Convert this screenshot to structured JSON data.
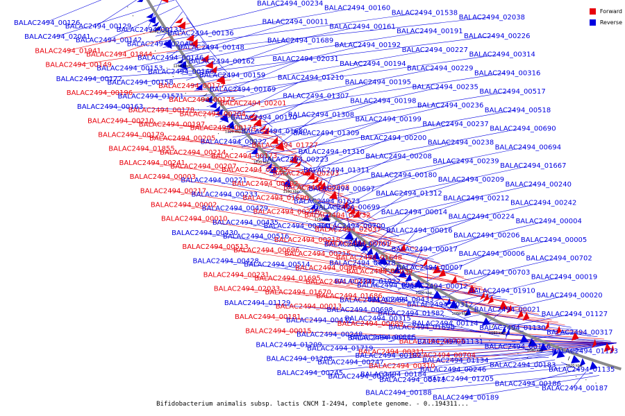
{
  "caption": "Bifidobacterium animalis subsp. lactis CNCM I-2494, complete genome. - 0..194311...",
  "legend": [
    {
      "label": "Forward",
      "color": "#e8000b"
    },
    {
      "label": "Reverse",
      "color": "#0000e0"
    }
  ],
  "colors": {
    "forward": "#e8000b",
    "reverse": "#0000e0",
    "backbone": "#8a8a8a"
  },
  "ticks": [
    "1280 kbp",
    "1260 kbp",
    "1240 kbp",
    "1220 kbp",
    "1200 kbp",
    "1180 kbp",
    "1160 kbp",
    "1140 kbp",
    "1120 kbp",
    "1100 kbp",
    "1080 kbp",
    "1060 kbp",
    "1040 kbp",
    "1020 kbp"
  ],
  "labels": [
    {
      "t": "BALAC2494_00126",
      "s": "r"
    },
    {
      "t": "BALAC2494_00129",
      "s": "r"
    },
    {
      "t": "BALAC2494_00131",
      "s": "r"
    },
    {
      "t": "BALAC2494_00136",
      "s": "r"
    },
    {
      "t": "BALAC2494_02041",
      "s": "r"
    },
    {
      "t": "BALAC2494_00142",
      "s": "r"
    },
    {
      "t": "BALAC2494_02040",
      "s": "r"
    },
    {
      "t": "BALAC2494_00148",
      "s": "r"
    },
    {
      "t": "BALAC2494_01941",
      "s": "f"
    },
    {
      "t": "BALAC2494_01844",
      "s": "f"
    },
    {
      "t": "BALAC2494_00146",
      "s": "r"
    },
    {
      "t": "BALAC2494_00162",
      "s": "r"
    },
    {
      "t": "BALAC2494_00149",
      "s": "f"
    },
    {
      "t": "BALAC2494_00153",
      "s": "r"
    },
    {
      "t": "BALAC2494_00166",
      "s": "r"
    },
    {
      "t": "BALAC2494_00159",
      "s": "r"
    },
    {
      "t": "BALAC2494_00172",
      "s": "r"
    },
    {
      "t": "BALAC2494_00158",
      "s": "r"
    },
    {
      "t": "BALAC2494_00177",
      "s": "f"
    },
    {
      "t": "BALAC2494_00169",
      "s": "r"
    },
    {
      "t": "BALAC2494_00196",
      "s": "f"
    },
    {
      "t": "BALAC2494_01571",
      "s": "r"
    },
    {
      "t": "BALAC2494_00175",
      "s": "f"
    },
    {
      "t": "BALAC2494_00201",
      "s": "f"
    },
    {
      "t": "BALAC2494_00163",
      "s": "r"
    },
    {
      "t": "BALAC2494_00178",
      "s": "f"
    },
    {
      "t": "BALAC2494_00204",
      "s": "f"
    },
    {
      "t": "BALAC2494_00170",
      "s": "r"
    },
    {
      "t": "BALAC2494_00210",
      "s": "f"
    },
    {
      "t": "BALAC2494_00197",
      "s": "f"
    },
    {
      "t": "BALAC2494_00174",
      "s": "f"
    },
    {
      "t": "BALAC2494_01680",
      "s": "r"
    },
    {
      "t": "BALAC2494_00179",
      "s": "f"
    },
    {
      "t": "BALAC2494_00205",
      "s": "f"
    },
    {
      "t": "BALAC2494_00222",
      "s": "r"
    },
    {
      "t": "BALAC2494_01727",
      "s": "f"
    },
    {
      "t": "BALAC2494_01855",
      "s": "f"
    },
    {
      "t": "BALAC2494_00214",
      "s": "f"
    },
    {
      "t": "BALAC2494_00173",
      "s": "f"
    },
    {
      "t": "BALAC2494_00223",
      "s": "r"
    },
    {
      "t": "BALAC2494_00241",
      "s": "f"
    },
    {
      "t": "BALAC2494_00207",
      "s": "f"
    },
    {
      "t": "BALAC2494_00225",
      "s": "f"
    },
    {
      "t": "BALAC2494_00203",
      "s": "f"
    },
    {
      "t": "BALAC2494_00003",
      "s": "f"
    },
    {
      "t": "BALAC2494_00221",
      "s": "r"
    },
    {
      "t": "BALAC2494_00202",
      "s": "f"
    },
    {
      "t": "BALAC2494_00008",
      "s": "f"
    },
    {
      "t": "BALAC2494_00217",
      "s": "f"
    },
    {
      "t": "BALAC2494_00233",
      "s": "r"
    },
    {
      "t": "BALAC2494_01690",
      "s": "f"
    },
    {
      "t": "BALAC2494_01673",
      "s": "r"
    },
    {
      "t": "BALAC2494_00002",
      "s": "f"
    },
    {
      "t": "BALAC2494_00429",
      "s": "r"
    },
    {
      "t": "BALAC2494_00216",
      "s": "f"
    },
    {
      "t": "BALAC2494_00232",
      "s": "f"
    },
    {
      "t": "BALAC2494_00010",
      "s": "f"
    },
    {
      "t": "BALAC2494_00435",
      "s": "r"
    },
    {
      "t": "BALAC2494_00220",
      "s": "r"
    },
    {
      "t": "BALAC2494_02037",
      "s": "f"
    },
    {
      "t": "BALAC2494_00430",
      "s": "r"
    },
    {
      "t": "BALAC2494_00516",
      "s": "r"
    },
    {
      "t": "BALAC2494_00218",
      "s": "f"
    },
    {
      "t": "BALAC2494_00009",
      "s": "f"
    },
    {
      "t": "BALAC2494_00513",
      "s": "f"
    },
    {
      "t": "BALAC2494_00696",
      "s": "f"
    },
    {
      "t": "BALAC2494_00215",
      "s": "f"
    },
    {
      "t": "BALAC2494_01648",
      "s": "f"
    },
    {
      "t": "BALAC2494_00428",
      "s": "r"
    },
    {
      "t": "BALAC2494_00514",
      "s": "r"
    },
    {
      "t": "BALAC2494_00964",
      "s": "f"
    },
    {
      "t": "BALAC2494_02039",
      "s": "f"
    },
    {
      "t": "BALAC2494_00231",
      "s": "f"
    },
    {
      "t": "BALAC2494_01695",
      "s": "f"
    },
    {
      "t": "BALAC2494_00434",
      "s": "f"
    },
    {
      "t": "BALAC2494_00691",
      "s": "r"
    },
    {
      "t": "BALAC2494_02033",
      "s": "f"
    },
    {
      "t": "BALAC2494_01670",
      "s": "f"
    },
    {
      "t": "BALAC2494_01686",
      "s": "f"
    },
    {
      "t": "BALAC2494_00433",
      "s": "r"
    },
    {
      "t": "BALAC2494_01129",
      "s": "r"
    },
    {
      "t": "BALAC2494_00013",
      "s": "f"
    },
    {
      "t": "BALAC2494_00698",
      "s": "r"
    },
    {
      "t": "BALAC2494_01582",
      "s": "r"
    },
    {
      "t": "BALAC2494_00181",
      "s": "f"
    },
    {
      "t": "BALAC2494_00432",
      "s": "r"
    },
    {
      "t": "BALAC2494_00689",
      "s": "f"
    },
    {
      "t": "BALAC2494_01698",
      "s": "r"
    },
    {
      "t": "BALAC2494_00015",
      "s": "f"
    },
    {
      "t": "BALAC2494_00248",
      "s": "r"
    },
    {
      "t": "BALAC2494_00431",
      "s": "r"
    },
    {
      "t": "BALAC2494_00705",
      "s": "f"
    },
    {
      "t": "BALAC2494_01209",
      "s": "r"
    },
    {
      "t": "BALAC2494_01719",
      "s": "r"
    },
    {
      "t": "BALAC2494_00311",
      "s": "f"
    },
    {
      "t": "BALAC2494_00704",
      "s": "f"
    },
    {
      "t": "BALAC2494_01208",
      "s": "r"
    },
    {
      "t": "BALAC2494_00247",
      "s": "r"
    },
    {
      "t": "BALAC2494_00310",
      "s": "f"
    },
    {
      "t": "BALAC2494_00246",
      "s": "r"
    },
    {
      "t": "BALAC2494_00245",
      "s": "r"
    },
    {
      "t": "BALAC2494_00154",
      "s": "r"
    },
    {
      "t": "BALAC2494_00171",
      "s": "r"
    },
    {
      "t": "BALAC2494_00234",
      "s": "r"
    },
    {
      "t": "BALAC2494_00160",
      "s": "r"
    },
    {
      "t": "BALAC2494_01538",
      "s": "r"
    },
    {
      "t": "BALAC2494_02038",
      "s": "r"
    },
    {
      "t": "BALAC2494_00011",
      "s": "r"
    },
    {
      "t": "BALAC2494_00161",
      "s": "r"
    },
    {
      "t": "BALAC2494_00191",
      "s": "r"
    },
    {
      "t": "BALAC2494_00226",
      "s": "r"
    },
    {
      "t": "BALAC2494_01689",
      "s": "r"
    },
    {
      "t": "BALAC2494_00192",
      "s": "r"
    },
    {
      "t": "BALAC2494_00227",
      "s": "r"
    },
    {
      "t": "BALAC2494_00314",
      "s": "r"
    },
    {
      "t": "BALAC2494_02031",
      "s": "r"
    },
    {
      "t": "BALAC2494_00194",
      "s": "r"
    },
    {
      "t": "BALAC2494_00229",
      "s": "r"
    },
    {
      "t": "BALAC2494_00316",
      "s": "r"
    },
    {
      "t": "BALAC2494_01210",
      "s": "r"
    },
    {
      "t": "BALAC2494_00195",
      "s": "r"
    },
    {
      "t": "BALAC2494_00235",
      "s": "r"
    },
    {
      "t": "BALAC2494_00517",
      "s": "r"
    },
    {
      "t": "BALAC2494_01307",
      "s": "r"
    },
    {
      "t": "BALAC2494_00198",
      "s": "r"
    },
    {
      "t": "BALAC2494_00236",
      "s": "r"
    },
    {
      "t": "BALAC2494_00518",
      "s": "r"
    },
    {
      "t": "BALAC2494_01308",
      "s": "r"
    },
    {
      "t": "BALAC2494_00199",
      "s": "r"
    },
    {
      "t": "BALAC2494_00237",
      "s": "r"
    },
    {
      "t": "BALAC2494_00690",
      "s": "r"
    },
    {
      "t": "BALAC2494_01309",
      "s": "r"
    },
    {
      "t": "BALAC2494_00200",
      "s": "r"
    },
    {
      "t": "BALAC2494_00238",
      "s": "r"
    },
    {
      "t": "BALAC2494_00694",
      "s": "r"
    },
    {
      "t": "BALAC2494_01310",
      "s": "r"
    },
    {
      "t": "BALAC2494_00208",
      "s": "r"
    },
    {
      "t": "BALAC2494_00239",
      "s": "r"
    },
    {
      "t": "BALAC2494_01667",
      "s": "r"
    },
    {
      "t": "BALAC2494_01311",
      "s": "r"
    },
    {
      "t": "BALAC2494_00180",
      "s": "r"
    },
    {
      "t": "BALAC2494_00209",
      "s": "r"
    },
    {
      "t": "BALAC2494_00240",
      "s": "r"
    },
    {
      "t": "BALAC2494_00697",
      "s": "r"
    },
    {
      "t": "BALAC2494_01312",
      "s": "r"
    },
    {
      "t": "BALAC2494_00212",
      "s": "r"
    },
    {
      "t": "BALAC2494_00242",
      "s": "r"
    },
    {
      "t": "BALAC2494_00699",
      "s": "r"
    },
    {
      "t": "BALAC2494_00014",
      "s": "r"
    },
    {
      "t": "BALAC2494_00224",
      "s": "r"
    },
    {
      "t": "BALAC2494_00004",
      "s": "r"
    },
    {
      "t": "BALAC2494_00700",
      "s": "r"
    },
    {
      "t": "BALAC2494_00016",
      "s": "r"
    },
    {
      "t": "BALAC2494_00206",
      "s": "r"
    },
    {
      "t": "BALAC2494_00005",
      "s": "r"
    },
    {
      "t": "BALAC2494_00701",
      "s": "r"
    },
    {
      "t": "BALAC2494_00017",
      "s": "r"
    },
    {
      "t": "BALAC2494_00006",
      "s": "r"
    },
    {
      "t": "BALAC2494_00702",
      "s": "r"
    },
    {
      "t": "BALAC2494_00018",
      "s": "r"
    },
    {
      "t": "BALAC2494_00007",
      "s": "r"
    },
    {
      "t": "BALAC2494_00703",
      "s": "r"
    },
    {
      "t": "BALAC2494_00019",
      "s": "r"
    },
    {
      "t": "BALAC2494_01922",
      "s": "r"
    },
    {
      "t": "BALAC2494_00012",
      "s": "r"
    },
    {
      "t": "BALAC2494_01910",
      "s": "r"
    },
    {
      "t": "BALAC2494_00020",
      "s": "r"
    },
    {
      "t": "BALAC2494_00965",
      "s": "r"
    },
    {
      "t": "BALAC2494_00312",
      "s": "r"
    },
    {
      "t": "BALAC2494_00021",
      "s": "r"
    },
    {
      "t": "BALAC2494_01127",
      "s": "r"
    },
    {
      "t": "BALAC2494_00315",
      "s": "r"
    },
    {
      "t": "BALAC2494_00114",
      "s": "r"
    },
    {
      "t": "BALAC2494_01130",
      "s": "r"
    },
    {
      "t": "BALAC2494_00317",
      "s": "r"
    },
    {
      "t": "BALAC2494_00115",
      "s": "r"
    },
    {
      "t": "BALAC2494_01131",
      "s": "r"
    },
    {
      "t": "BALAC2494_00116",
      "s": "r"
    },
    {
      "t": "BALAC2494_01133",
      "s": "r"
    },
    {
      "t": "BALAC2494_00182",
      "s": "r"
    },
    {
      "t": "BALAC2494_01134",
      "s": "r"
    },
    {
      "t": "BALAC2494_00183",
      "s": "r"
    },
    {
      "t": "BALAC2494_01135",
      "s": "r"
    },
    {
      "t": "BALAC2494_00184",
      "s": "r"
    },
    {
      "t": "BALAC2494_01205",
      "s": "r"
    },
    {
      "t": "BALAC2494_00186",
      "s": "r"
    },
    {
      "t": "BALAC2494_00187",
      "s": "r"
    },
    {
      "t": "BALAC2494_00188",
      "s": "r"
    },
    {
      "t": "BALAC2494_00189",
      "s": "r"
    }
  ]
}
